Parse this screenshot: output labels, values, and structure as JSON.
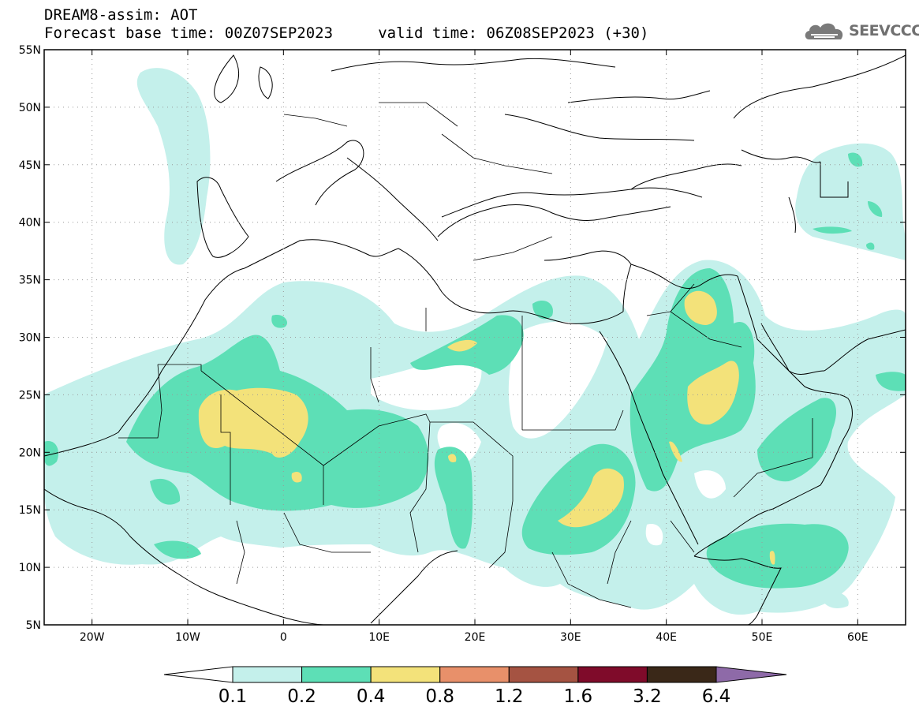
{
  "header": {
    "title_line1": "DREAM8-assim: AOT",
    "title_line2": "Forecast base time: 00Z07SEP2023     valid time: 06Z08SEP2023 (+30)",
    "logo_text": "SEEVCCC",
    "logo_icon": "cloud-icon"
  },
  "map": {
    "lat_labels": [
      "55N",
      "50N",
      "45N",
      "40N",
      "35N",
      "30N",
      "25N",
      "20N",
      "15N",
      "10N",
      "5N"
    ],
    "lon_labels": [
      "20W",
      "10W",
      "0",
      "10E",
      "20E",
      "30E",
      "40E",
      "50E",
      "60E"
    ],
    "lon_range": [
      -25,
      65
    ],
    "lat_range": [
      5,
      55
    ],
    "graticule": "dotted"
  },
  "colorbar": {
    "labels": [
      "0.1",
      "0.2",
      "0.4",
      "0.8",
      "1.2",
      "1.6",
      "3.2",
      "6.4"
    ],
    "colors": [
      "#c4f0eb",
      "#5ddfb6",
      "#f3e27a",
      "#e8906a",
      "#a55342",
      "#7f0b2a",
      "#3a2818",
      "#8e6aa8"
    ]
  }
}
